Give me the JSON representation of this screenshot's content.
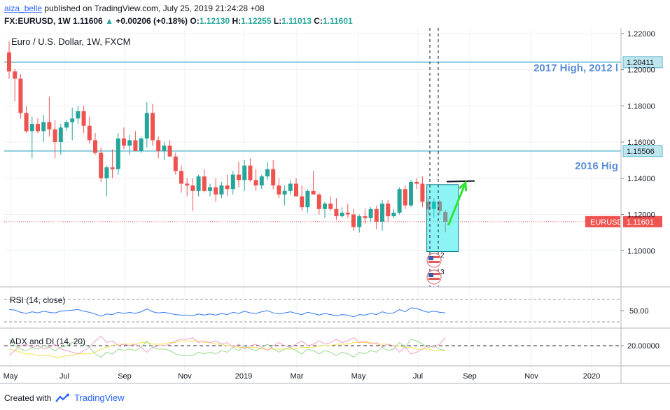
{
  "header": {
    "author": "aiza_belle",
    "published_text": "published on TradingView.com, July 25, 2019 21:24:28 +08",
    "symbol": "FX:EURUSD, 1W",
    "last": "1.11606",
    "change": "+0.00206 (+0.18%)",
    "o_label": "O:",
    "o_value": "1.12130",
    "h_label": "H:",
    "h_value": "1.12255",
    "l_label": "L:",
    "l_value": "1.11013",
    "c_label": "C:",
    "c_value": "1.11601"
  },
  "footer": {
    "created_with": "Created with",
    "brand": "TradingView"
  },
  "chart_data": {
    "type": "candlestick",
    "title": "Euro / U.S. Dollar, 1W, FXCM",
    "ylim": [
      1.08,
      1.223
    ],
    "price_ticks": [
      "1.22000",
      "1.20000",
      "1.18000",
      "1.16000",
      "1.14000",
      "1.12000",
      "1.10000"
    ],
    "x_tick_labels": [
      "May",
      "Jul",
      "Sep",
      "Nov",
      "2019",
      "Mar",
      "May",
      "Jul",
      "Sep",
      "Nov",
      "2020"
    ],
    "candles": [
      [
        1.2095,
        1.2155,
        1.195,
        1.199
      ],
      [
        1.199,
        1.2005,
        1.1825,
        1.195
      ],
      [
        1.195,
        1.1975,
        1.173,
        1.176
      ],
      [
        1.176,
        1.18,
        1.165,
        1.166
      ],
      [
        1.166,
        1.174,
        1.151,
        1.17
      ],
      [
        1.17,
        1.173,
        1.165,
        1.166
      ],
      [
        1.166,
        1.175,
        1.16,
        1.171
      ],
      [
        1.171,
        1.185,
        1.163,
        1.167
      ],
      [
        1.167,
        1.172,
        1.151,
        1.16
      ],
      [
        1.16,
        1.17,
        1.153,
        1.168
      ],
      [
        1.168,
        1.172,
        1.166,
        1.171
      ],
      [
        1.171,
        1.179,
        1.161,
        1.173
      ],
      [
        1.173,
        1.18,
        1.17,
        1.177
      ],
      [
        1.177,
        1.18,
        1.165,
        1.169
      ],
      [
        1.169,
        1.174,
        1.159,
        1.161
      ],
      [
        1.161,
        1.165,
        1.153,
        1.154
      ],
      [
        1.154,
        1.157,
        1.138,
        1.14
      ],
      [
        1.14,
        1.147,
        1.13,
        1.146
      ],
      [
        1.146,
        1.156,
        1.14,
        1.145
      ],
      [
        1.145,
        1.165,
        1.142,
        1.162
      ],
      [
        1.162,
        1.168,
        1.156,
        1.158
      ],
      [
        1.158,
        1.164,
        1.153,
        1.161
      ],
      [
        1.161,
        1.166,
        1.155,
        1.155
      ],
      [
        1.155,
        1.163,
        1.154,
        1.162
      ],
      [
        1.162,
        1.182,
        1.157,
        1.176
      ],
      [
        1.176,
        1.181,
        1.158,
        1.161
      ],
      [
        1.161,
        1.163,
        1.151,
        1.155
      ],
      [
        1.155,
        1.16,
        1.15,
        1.158
      ],
      [
        1.158,
        1.161,
        1.152,
        1.152
      ],
      [
        1.152,
        1.154,
        1.142,
        1.144
      ],
      [
        1.144,
        1.147,
        1.132,
        1.137
      ],
      [
        1.137,
        1.14,
        1.13,
        1.136
      ],
      [
        1.136,
        1.14,
        1.122,
        1.133
      ],
      [
        1.133,
        1.142,
        1.13,
        1.141
      ],
      [
        1.141,
        1.145,
        1.132,
        1.133
      ],
      [
        1.133,
        1.137,
        1.13,
        1.135
      ],
      [
        1.135,
        1.14,
        1.127,
        1.131
      ],
      [
        1.131,
        1.138,
        1.129,
        1.136
      ],
      [
        1.136,
        1.142,
        1.13,
        1.134
      ],
      [
        1.134,
        1.144,
        1.131,
        1.142
      ],
      [
        1.142,
        1.149,
        1.135,
        1.139
      ],
      [
        1.139,
        1.15,
        1.133,
        1.147
      ],
      [
        1.147,
        1.151,
        1.138,
        1.139
      ],
      [
        1.139,
        1.145,
        1.133,
        1.136
      ],
      [
        1.136,
        1.142,
        1.134,
        1.141
      ],
      [
        1.141,
        1.149,
        1.139,
        1.145
      ],
      [
        1.145,
        1.15,
        1.134,
        1.136
      ],
      [
        1.136,
        1.14,
        1.129,
        1.131
      ],
      [
        1.131,
        1.136,
        1.125,
        1.133
      ],
      [
        1.133,
        1.139,
        1.131,
        1.137
      ],
      [
        1.137,
        1.14,
        1.13,
        1.13
      ],
      [
        1.13,
        1.136,
        1.122,
        1.124
      ],
      [
        1.124,
        1.134,
        1.121,
        1.133
      ],
      [
        1.133,
        1.144,
        1.131,
        1.131
      ],
      [
        1.131,
        1.132,
        1.12,
        1.123
      ],
      [
        1.123,
        1.127,
        1.118,
        1.126
      ],
      [
        1.126,
        1.13,
        1.122,
        1.123
      ],
      [
        1.123,
        1.129,
        1.117,
        1.119
      ],
      [
        1.119,
        1.124,
        1.118,
        1.121
      ],
      [
        1.121,
        1.126,
        1.118,
        1.12
      ],
      [
        1.12,
        1.123,
        1.111,
        1.113
      ],
      [
        1.113,
        1.12,
        1.11,
        1.119
      ],
      [
        1.119,
        1.123,
        1.115,
        1.118
      ],
      [
        1.118,
        1.124,
        1.116,
        1.123
      ],
      [
        1.123,
        1.125,
        1.112,
        1.116
      ],
      [
        1.116,
        1.128,
        1.111,
        1.126
      ],
      [
        1.126,
        1.128,
        1.116,
        1.119
      ],
      [
        1.119,
        1.123,
        1.118,
        1.121
      ],
      [
        1.121,
        1.135,
        1.12,
        1.134
      ],
      [
        1.134,
        1.136,
        1.123,
        1.125
      ],
      [
        1.125,
        1.139,
        1.124,
        1.138
      ],
      [
        1.138,
        1.14,
        1.134,
        1.137
      ],
      [
        1.137,
        1.141,
        1.124,
        1.127
      ],
      [
        1.127,
        1.129,
        1.12,
        1.123
      ],
      [
        1.123,
        1.129,
        1.118,
        1.127
      ],
      [
        1.127,
        1.128,
        1.12,
        1.122
      ],
      [
        1.1213,
        1.1226,
        1.1101,
        1.116
      ]
    ],
    "horizontal_levels": [
      {
        "price": 1.20411,
        "label": "1.20411",
        "annotation": "2017 High, 2012 l"
      },
      {
        "price": 1.15506,
        "label": "1.15506",
        "annotation": "2016 Hig"
      }
    ],
    "last_price": {
      "symbol": "EURUSD",
      "value": "1.11601",
      "price": 1.11601
    },
    "box": {
      "from_candle": 73,
      "to_candle": 79,
      "top": 1.1365,
      "bottom": 1.0995
    },
    "arrow": {
      "from": [
        76.5,
        1.114
      ],
      "to": [
        79.5,
        1.1375
      ]
    },
    "trendline_price": 1.1385,
    "event_markers": [
      "2",
      "3"
    ],
    "rsi": {
      "label": "RSI (14, close)",
      "tick": "50.00",
      "values": [
        52,
        51,
        47,
        45,
        48,
        46,
        49,
        47,
        46,
        49,
        50,
        51,
        52,
        49,
        47,
        44,
        40,
        44,
        43,
        47,
        45,
        47,
        45,
        48,
        53,
        48,
        46,
        47,
        45,
        43,
        42,
        42,
        41,
        44,
        42,
        44,
        42,
        45,
        43,
        47,
        45,
        49,
        46,
        45,
        48,
        50,
        46,
        44,
        46,
        48,
        45,
        43,
        47,
        45,
        42,
        45,
        43,
        41,
        43,
        42,
        39,
        43,
        42,
        45,
        43,
        48,
        45,
        46,
        52,
        48,
        55,
        54,
        50,
        47,
        49,
        47,
        46
      ]
    },
    "adx": {
      "label": "ADX and DI (14, 20)",
      "tick": "20.00000",
      "adx": [
        18,
        17,
        16,
        15,
        15,
        14,
        14,
        14,
        13,
        13,
        14,
        14,
        15,
        15,
        15,
        16,
        18,
        19,
        20,
        21,
        21,
        21,
        21,
        22,
        22,
        21,
        21,
        21,
        22,
        22,
        23,
        23,
        23,
        23,
        22,
        22,
        21,
        21,
        20,
        20,
        19,
        19,
        19,
        19,
        18,
        18,
        18,
        18,
        18,
        18,
        18,
        19,
        19,
        19,
        20,
        20,
        20,
        21,
        21,
        21,
        22,
        22,
        22,
        22,
        21,
        21,
        21,
        20,
        20,
        19,
        19,
        18,
        18,
        18,
        17,
        17,
        17
      ],
      "plus_di": [
        24,
        20,
        18,
        17,
        19,
        18,
        20,
        19,
        17,
        19,
        20,
        22,
        23,
        21,
        19,
        15,
        13,
        16,
        15,
        18,
        17,
        18,
        17,
        19,
        23,
        19,
        18,
        18,
        17,
        15,
        14,
        14,
        14,
        16,
        15,
        16,
        15,
        17,
        16,
        19,
        17,
        20,
        18,
        17,
        19,
        21,
        18,
        16,
        18,
        19,
        17,
        15,
        18,
        17,
        15,
        17,
        16,
        14,
        16,
        15,
        13,
        16,
        15,
        17,
        16,
        19,
        17,
        18,
        22,
        19,
        24,
        23,
        21,
        19,
        20,
        18,
        17
      ],
      "minus_di": [
        14,
        17,
        20,
        21,
        19,
        20,
        18,
        19,
        21,
        18,
        17,
        16,
        15,
        17,
        19,
        23,
        26,
        22,
        23,
        20,
        21,
        20,
        21,
        19,
        16,
        19,
        20,
        20,
        21,
        23,
        24,
        24,
        25,
        22,
        23,
        22,
        23,
        21,
        22,
        19,
        21,
        18,
        20,
        21,
        19,
        17,
        20,
        22,
        20,
        19,
        21,
        23,
        20,
        21,
        23,
        21,
        22,
        24,
        22,
        23,
        25,
        22,
        23,
        21,
        22,
        19,
        21,
        20,
        16,
        19,
        15,
        16,
        18,
        20,
        19,
        21,
        25
      ]
    }
  }
}
